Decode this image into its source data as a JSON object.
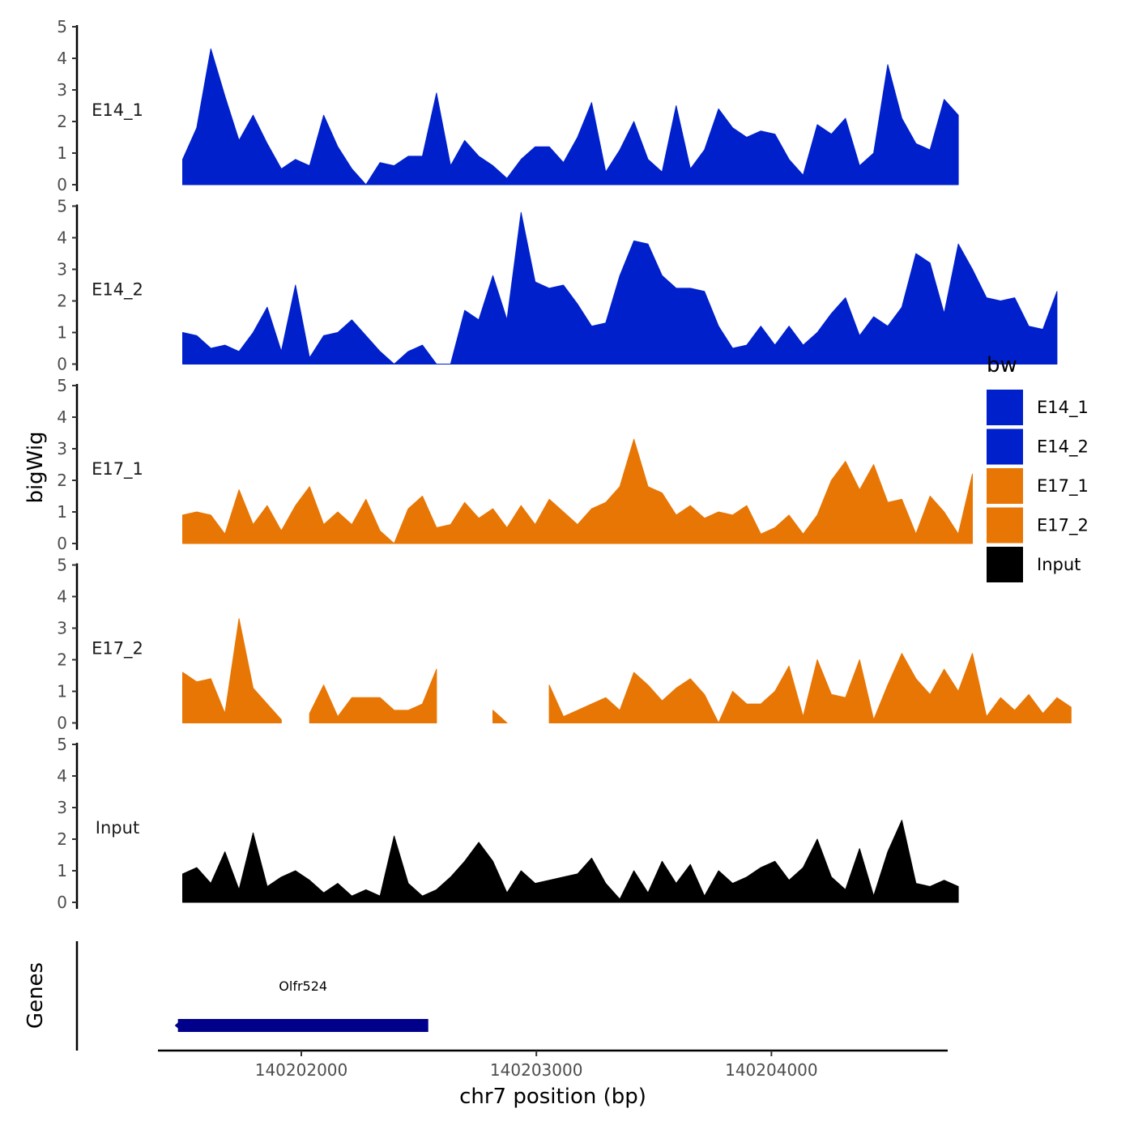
{
  "chart_data": {
    "type": "area",
    "x_axis": {
      "title": "chr7 position (bp)",
      "range": [
        140201390,
        140204750
      ],
      "ticks": [
        140202000,
        140203000,
        140204000
      ],
      "tick_labels": [
        "140202000",
        "140203000",
        "140204000"
      ]
    },
    "y_axis": {
      "title": "bigWig",
      "range": [
        0,
        5
      ],
      "ticks": [
        0,
        1,
        2,
        3,
        4,
        5
      ],
      "tick_labels": [
        "0",
        "1",
        "2",
        "3",
        "4",
        "5"
      ]
    },
    "legend": {
      "title": "bw",
      "position": "right",
      "entries": [
        {
          "label": "E14_1",
          "color": "#0020CC"
        },
        {
          "label": "E14_2",
          "color": "#0020CC"
        },
        {
          "label": "E17_1",
          "color": "#E87605"
        },
        {
          "label": "E17_2",
          "color": "#E87605"
        },
        {
          "label": "Input",
          "color": "#000000"
        }
      ]
    },
    "x_start": 140201495,
    "x_step": 60,
    "series": [
      {
        "name": "E14_1",
        "color": "#0020CC",
        "values": [
          0.8,
          1.8,
          4.3,
          2.8,
          1.4,
          2.2,
          1.3,
          0.5,
          0.8,
          0.6,
          2.2,
          1.2,
          0.5,
          0.0,
          0.7,
          0.6,
          0.9,
          0.9,
          2.9,
          0.6,
          1.4,
          0.9,
          0.6,
          0.2,
          0.8,
          1.2,
          1.2,
          0.7,
          1.5,
          2.6,
          0.4,
          1.1,
          2.0,
          0.8,
          0.4,
          2.5,
          0.5,
          1.1,
          2.4,
          1.8,
          1.5,
          1.7,
          1.6,
          0.8,
          0.3,
          1.9,
          1.6,
          2.1,
          0.6,
          1.0,
          3.8,
          2.1,
          1.3,
          1.1,
          2.7,
          2.2
        ]
      },
      {
        "name": "E14_2",
        "color": "#0020CC",
        "values": [
          1.0,
          0.9,
          0.5,
          0.6,
          0.4,
          1.0,
          1.8,
          0.4,
          2.5,
          0.2,
          0.9,
          1.0,
          1.4,
          0.9,
          0.4,
          0.0,
          0.4,
          0.6,
          0.0,
          0.0,
          1.7,
          1.4,
          2.8,
          1.4,
          4.8,
          2.6,
          2.4,
          2.5,
          1.9,
          1.2,
          1.3,
          2.8,
          3.9,
          3.8,
          2.8,
          2.4,
          2.4,
          2.3,
          1.2,
          0.5,
          0.6,
          1.2,
          0.6,
          1.2,
          0.6,
          1.0,
          1.6,
          2.1,
          0.9,
          1.5,
          1.2,
          1.8,
          3.5,
          3.2,
          1.6,
          3.8,
          3.0,
          2.1,
          2.0,
          2.1,
          1.2,
          1.1,
          2.3
        ]
      },
      {
        "name": "E17_1",
        "color": "#E87605",
        "values": [
          0.9,
          1.0,
          0.9,
          0.3,
          1.7,
          0.6,
          1.2,
          0.4,
          1.2,
          1.8,
          0.6,
          1.0,
          0.6,
          1.4,
          0.4,
          0.0,
          1.1,
          1.5,
          0.5,
          0.6,
          1.3,
          0.8,
          1.1,
          0.5,
          1.2,
          0.6,
          1.4,
          1.0,
          0.6,
          1.1,
          1.3,
          1.8,
          3.3,
          1.8,
          1.6,
          0.9,
          1.2,
          0.8,
          1.0,
          0.9,
          1.2,
          0.3,
          0.5,
          0.9,
          0.3,
          0.9,
          2.0,
          2.6,
          1.7,
          2.5,
          1.3,
          1.4,
          0.3,
          1.5,
          1.0,
          0.3,
          2.2
        ]
      },
      {
        "name": "E17_2",
        "color": "#E87605",
        "values": [
          1.6,
          1.3,
          1.4,
          0.3,
          3.3,
          1.1,
          0.6,
          0.1,
          null,
          0.3,
          1.2,
          0.2,
          0.8,
          0.8,
          0.8,
          0.4,
          0.4,
          0.6,
          1.7,
          null,
          null,
          null,
          0.4,
          0.0,
          null,
          null,
          1.2,
          0.2,
          0.4,
          0.6,
          0.8,
          0.4,
          1.6,
          1.2,
          0.7,
          1.1,
          1.4,
          0.9,
          0.0,
          1.0,
          0.6,
          0.6,
          1.0,
          1.8,
          0.2,
          2.0,
          0.9,
          0.8,
          2.0,
          0.1,
          1.2,
          2.2,
          1.4,
          0.9,
          1.7,
          1.0,
          2.2,
          0.2,
          0.8,
          0.4,
          0.9,
          0.3,
          0.8,
          0.5
        ]
      },
      {
        "name": "Input",
        "color": "#000000",
        "values": [
          0.9,
          1.1,
          0.6,
          1.6,
          0.4,
          2.2,
          0.5,
          0.8,
          1.0,
          0.7,
          0.3,
          0.6,
          0.2,
          0.4,
          0.2,
          2.1,
          0.6,
          0.2,
          0.4,
          0.8,
          1.3,
          1.9,
          1.3,
          0.3,
          1.0,
          0.6,
          0.7,
          0.8,
          0.9,
          1.4,
          0.6,
          0.1,
          1.0,
          0.3,
          1.3,
          0.6,
          1.2,
          0.2,
          1.0,
          0.6,
          0.8,
          1.1,
          1.3,
          0.7,
          1.1,
          2.0,
          0.8,
          0.4,
          1.7,
          0.2,
          1.6,
          2.6,
          0.6,
          0.5,
          0.7,
          0.5
        ]
      }
    ],
    "gene_track": {
      "title": "Genes",
      "genes": [
        {
          "name": "Olfr524",
          "start": 140201475,
          "end": 140202540,
          "strand": "-",
          "color": "#00008B"
        }
      ]
    }
  }
}
